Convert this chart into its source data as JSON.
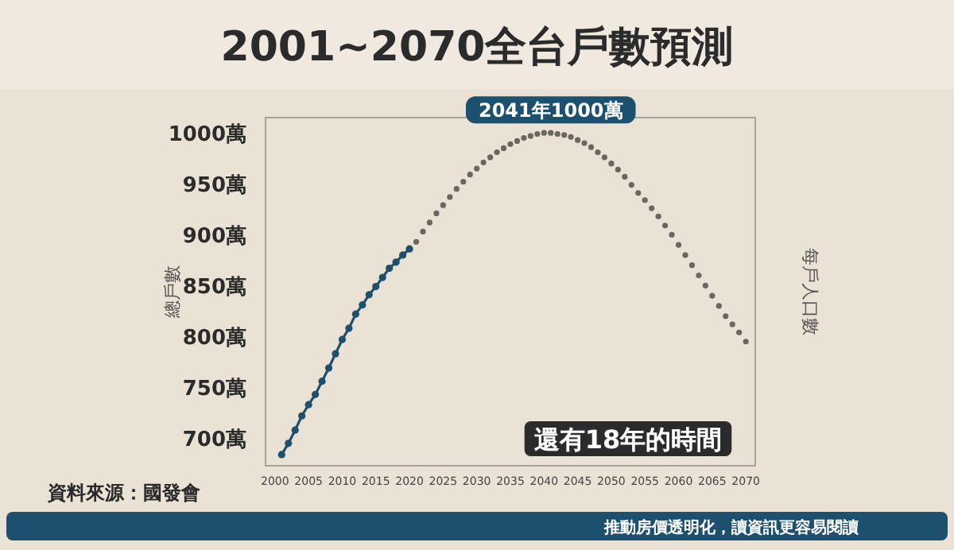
{
  "chart_data": {
    "type": "line",
    "title": "2001~2070全台戶數預測",
    "ylabel": "總戶數",
    "y2label": "每戶人口數",
    "annotations": [
      {
        "text": "2041年1000萬",
        "x": 2041,
        "y": 1000
      },
      "還有18年的時間",
      "資料來源：國發會",
      "推動房價透明化，讀資訊更容易閱讀"
    ],
    "xlim": [
      1998.6,
      2071.4
    ],
    "ylim": [
      673,
      1015
    ],
    "xticks": [
      2000,
      2005,
      2010,
      2015,
      2020,
      2025,
      2030,
      2035,
      2040,
      2045,
      2050,
      2055,
      2060,
      2065,
      2070
    ],
    "yticks": [
      {
        "value": 700,
        "label": "700萬"
      },
      {
        "value": 750,
        "label": "750萬"
      },
      {
        "value": 800,
        "label": "800萬"
      },
      {
        "value": 850,
        "label": "850萬"
      },
      {
        "value": 900,
        "label": "900萬"
      },
      {
        "value": 950,
        "label": "950萬"
      },
      {
        "value": 1000,
        "label": "1000萬"
      }
    ],
    "grid": false,
    "marker": "circle",
    "series": [
      {
        "type": "line",
        "color": "#1d4f6e",
        "x": [
          2001,
          2002,
          2003,
          2004,
          2005,
          2006,
          2007,
          2008,
          2009,
          2010,
          2011,
          2012,
          2013,
          2014,
          2015,
          2016,
          2017,
          2018,
          2019,
          2020
        ],
        "values": [
          684,
          695,
          708,
          722,
          733,
          743,
          756,
          769,
          783,
          797,
          808,
          822,
          831,
          841,
          849,
          858,
          867,
          873,
          880,
          886
        ]
      },
      {
        "type": "scatter",
        "color": "#6b6660",
        "x": [
          2021,
          2022,
          2023,
          2024,
          2025,
          2026,
          2027,
          2028,
          2029,
          2030,
          2031,
          2032,
          2033,
          2034,
          2035,
          2036,
          2037,
          2038,
          2039,
          2040,
          2041,
          2042,
          2043,
          2044,
          2045,
          2046,
          2047,
          2048,
          2049,
          2050,
          2051,
          2052,
          2053,
          2054,
          2055,
          2056,
          2057,
          2058,
          2059,
          2060,
          2061,
          2062,
          2063,
          2064,
          2065,
          2066,
          2067,
          2068,
          2069,
          2070
        ],
        "values": [
          893,
          903,
          912,
          921,
          929,
          937,
          945,
          952,
          959,
          965,
          971,
          976,
          981,
          985,
          989,
          992,
          995,
          997,
          999,
          1000,
          1000,
          999,
          998,
          996,
          993,
          990,
          986,
          981,
          976,
          970,
          964,
          957,
          949,
          941,
          934,
          926,
          918,
          909,
          900,
          890,
          880,
          870,
          860,
          850,
          840,
          830,
          820,
          812,
          804,
          795
        ]
      }
    ]
  }
}
